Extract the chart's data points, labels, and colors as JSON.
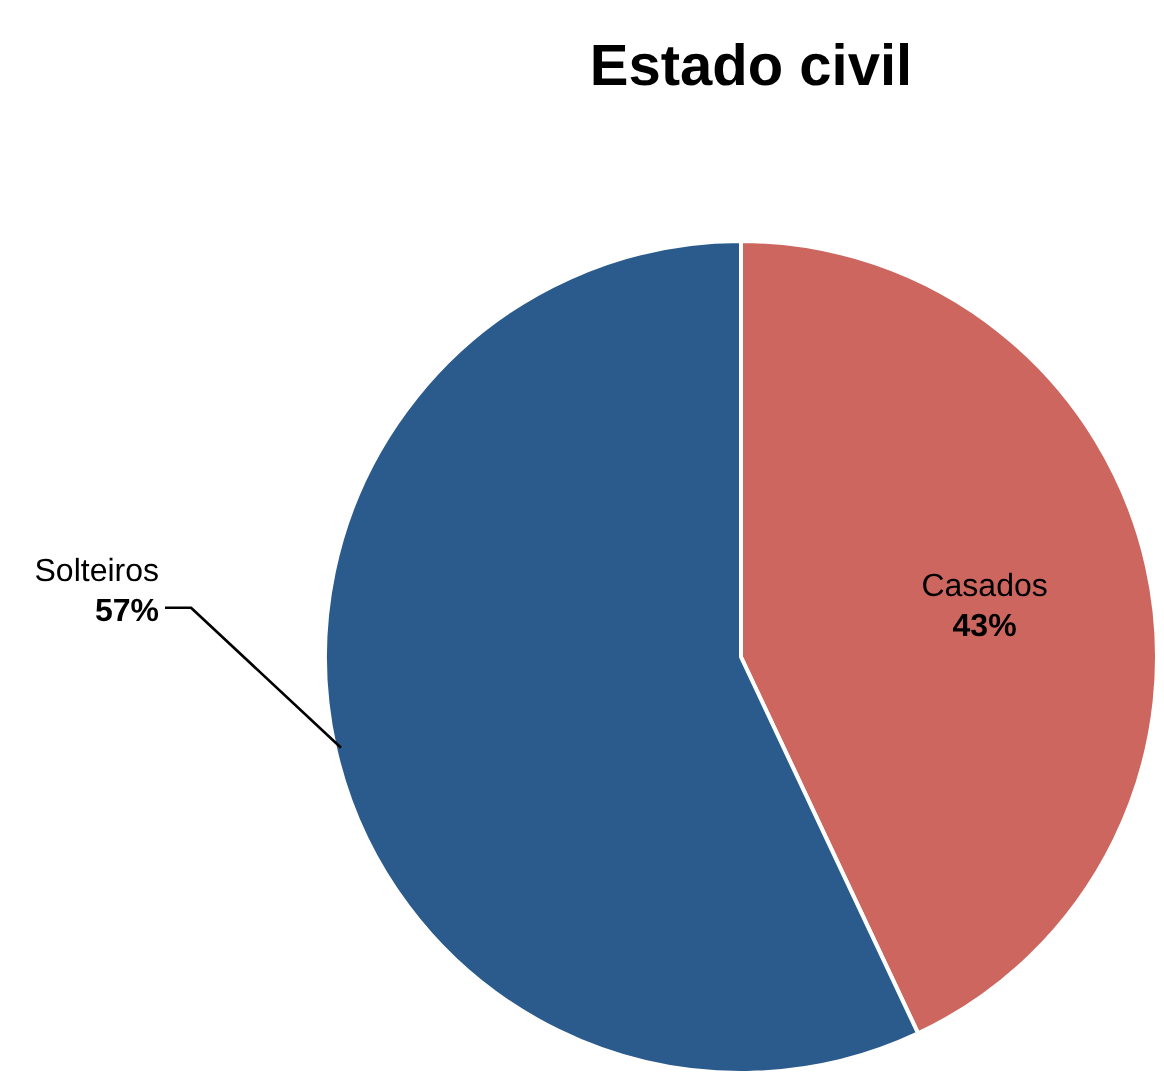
{
  "chart_data": {
    "type": "pie",
    "title": "Estado civil",
    "categories": [
      "Casados",
      "Solteiros"
    ],
    "values": [
      43,
      57
    ],
    "colors": [
      "#cd665f",
      "#2a5b8c"
    ],
    "value_labels": [
      "43%",
      "57%"
    ]
  }
}
